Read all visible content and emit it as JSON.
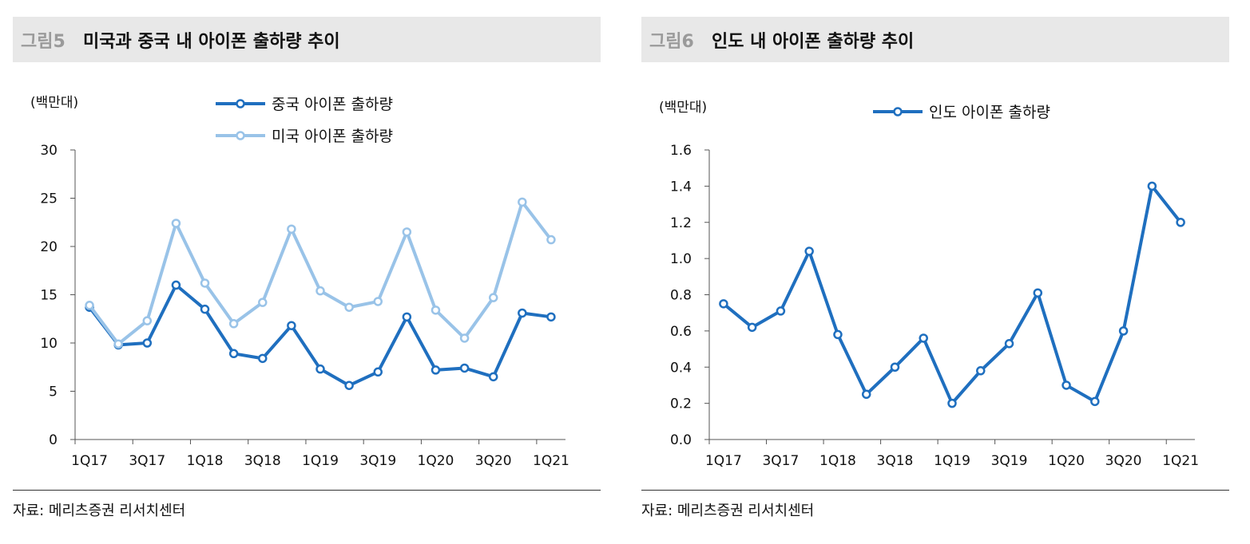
{
  "colors": {
    "dark_blue": "#1f6fbf",
    "light_blue": "#99c3e8",
    "title_bg": "#e8e8e8",
    "fig_num": "#9a9a9a"
  },
  "left": {
    "fig_num": "그림5",
    "title": "미국과 중국 내 아이폰 출하량 추이",
    "source": "자료: 메리츠증권 리서치센터"
  },
  "right": {
    "fig_num": "그림6",
    "title": "인도 내 아이폰 출하량 추이",
    "source": "자료: 메리츠증권 리서치센터"
  },
  "chart_data": [
    {
      "type": "line",
      "ylabel": "(백만대)",
      "ylim": [
        0,
        30
      ],
      "yticks": [
        "0",
        "5",
        "10",
        "15",
        "20",
        "25",
        "30"
      ],
      "ytick_values": [
        0,
        5,
        10,
        15,
        20,
        25,
        30
      ],
      "x": [
        "1Q17",
        "2Q17",
        "3Q17",
        "4Q17",
        "1Q18",
        "2Q18",
        "3Q18",
        "4Q18",
        "1Q19",
        "2Q19",
        "3Q19",
        "4Q19",
        "1Q20",
        "2Q20",
        "3Q20",
        "4Q20",
        "1Q21"
      ],
      "xtick_labels": [
        "1Q17",
        "3Q17",
        "1Q18",
        "3Q18",
        "1Q19",
        "3Q19",
        "1Q20",
        "3Q20",
        "1Q21"
      ],
      "legend_position": "top-center",
      "series": [
        {
          "name": "중국 아이폰 출하량",
          "color": "#1f6fbf",
          "values": [
            13.7,
            9.8,
            10.0,
            16.0,
            13.5,
            8.9,
            8.4,
            11.8,
            7.3,
            5.6,
            7.0,
            12.7,
            7.2,
            7.4,
            6.5,
            13.1,
            12.7
          ]
        },
        {
          "name": "미국 아이폰 출하량",
          "color": "#99c3e8",
          "values": [
            13.9,
            9.9,
            12.3,
            22.4,
            16.2,
            12.0,
            14.2,
            21.8,
            15.4,
            13.7,
            14.3,
            21.5,
            13.4,
            10.5,
            14.7,
            24.6,
            20.7
          ]
        }
      ]
    },
    {
      "type": "line",
      "ylabel": "(백만대)",
      "ylim": [
        0,
        1.6
      ],
      "yticks": [
        "0.0",
        "0.2",
        "0.4",
        "0.6",
        "0.8",
        "1.0",
        "1.2",
        "1.4",
        "1.6"
      ],
      "ytick_values": [
        0,
        0.2,
        0.4,
        0.6,
        0.8,
        1.0,
        1.2,
        1.4,
        1.6
      ],
      "x": [
        "1Q17",
        "2Q17",
        "3Q17",
        "4Q17",
        "1Q18",
        "2Q18",
        "3Q18",
        "4Q18",
        "1Q19",
        "2Q19",
        "3Q19",
        "4Q19",
        "1Q20",
        "2Q20",
        "3Q20",
        "4Q20",
        "1Q21"
      ],
      "xtick_labels": [
        "1Q17",
        "3Q17",
        "1Q18",
        "3Q18",
        "1Q19",
        "3Q19",
        "1Q20",
        "3Q20",
        "1Q21"
      ],
      "legend_position": "top-center",
      "series": [
        {
          "name": "인도 아이폰 출하량",
          "color": "#1f6fbf",
          "values": [
            0.75,
            0.62,
            0.71,
            1.04,
            0.58,
            0.25,
            0.4,
            0.56,
            0.2,
            0.38,
            0.53,
            0.81,
            0.3,
            0.21,
            0.6,
            1.4,
            1.2
          ]
        }
      ]
    }
  ]
}
